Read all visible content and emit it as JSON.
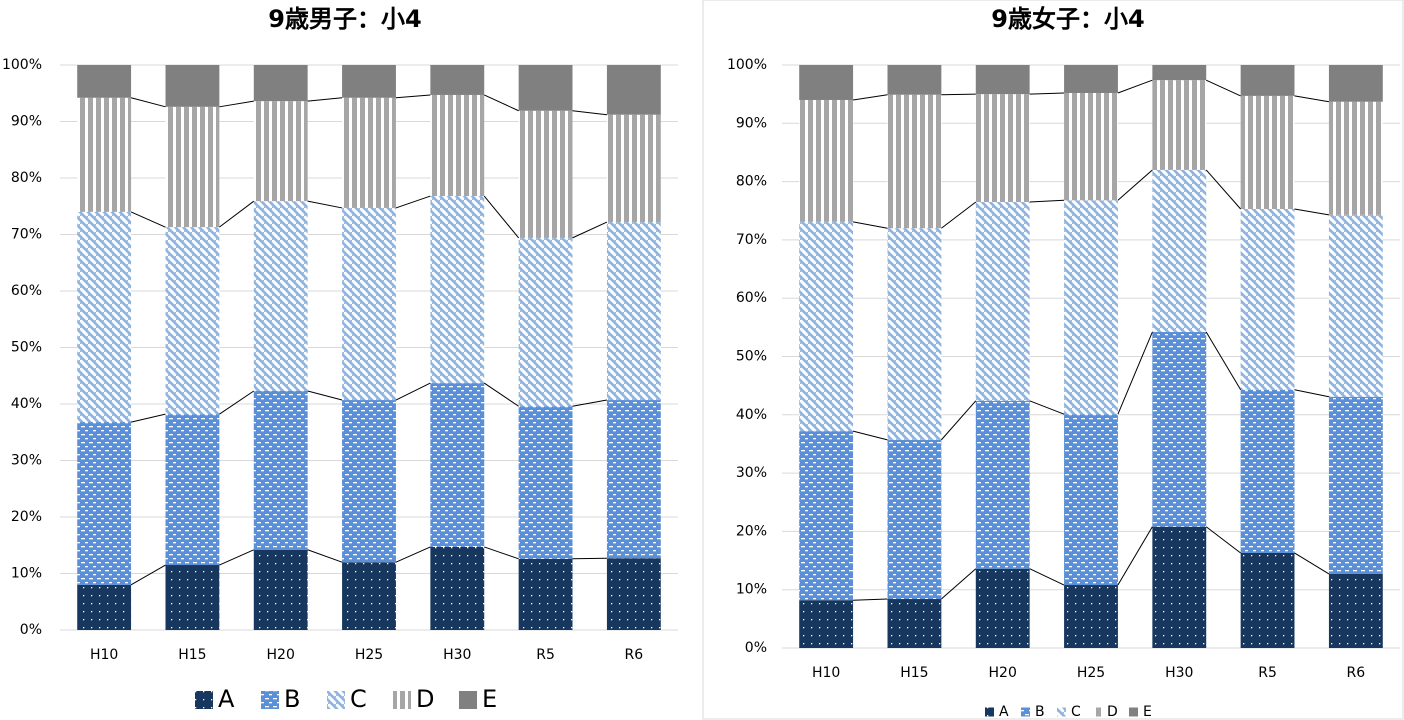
{
  "chart_data": [
    {
      "type": "bar",
      "stacked": true,
      "title": "9歳男子：小4",
      "categories": [
        "H10",
        "H15",
        "H20",
        "H25",
        "H30",
        "R5",
        "R6"
      ],
      "series": [
        {
          "name": "A",
          "color": "#17375e",
          "values": [
            8.0,
            11.5,
            14.2,
            12.0,
            14.7,
            12.6,
            12.7
          ]
        },
        {
          "name": "B",
          "color": "#5b8fd6",
          "values": [
            28.8,
            26.7,
            28.1,
            28.7,
            29.0,
            27.0,
            28.0
          ]
        },
        {
          "name": "C",
          "color": "#8db4e2",
          "values": [
            37.2,
            33.1,
            33.6,
            34.0,
            33.1,
            29.8,
            31.5
          ]
        },
        {
          "name": "D",
          "color": "#a6a6a6",
          "values": [
            20.2,
            21.3,
            17.7,
            19.5,
            17.9,
            22.5,
            19.0
          ]
        },
        {
          "name": "E",
          "color": "#808080",
          "values": [
            5.8,
            7.4,
            6.4,
            5.8,
            5.3,
            8.1,
            8.8
          ]
        }
      ],
      "ylim": [
        0,
        100
      ],
      "yticks": [
        {
          "value": 0,
          "label": "0%"
        },
        {
          "value": 10,
          "label": "10%"
        },
        {
          "value": 20,
          "label": "20%"
        },
        {
          "value": 30,
          "label": "30%"
        },
        {
          "value": 40,
          "label": "40%"
        },
        {
          "value": 50,
          "label": "50%"
        },
        {
          "value": 60,
          "label": "60%"
        },
        {
          "value": 70,
          "label": "70%"
        },
        {
          "value": 80,
          "label": "80%"
        },
        {
          "value": 90,
          "label": "90%"
        },
        {
          "value": 100,
          "label": "100%"
        }
      ],
      "grid": true,
      "legend": "bottom"
    },
    {
      "type": "bar",
      "stacked": true,
      "title": "9歳女子：小4",
      "categories": [
        "H10",
        "H15",
        "H20",
        "H25",
        "H30",
        "R5",
        "R6"
      ],
      "series": [
        {
          "name": "A",
          "color": "#17375e",
          "values": [
            8.2,
            8.4,
            13.6,
            10.8,
            20.8,
            16.3,
            12.7
          ]
        },
        {
          "name": "B",
          "color": "#5b8fd6",
          "values": [
            29.0,
            27.3,
            28.8,
            29.3,
            33.4,
            28.0,
            30.4
          ]
        },
        {
          "name": "C",
          "color": "#8db4e2",
          "values": [
            35.9,
            36.3,
            34.1,
            36.7,
            27.8,
            31.0,
            31.2
          ]
        },
        {
          "name": "D",
          "color": "#a6a6a6",
          "values": [
            20.9,
            22.9,
            18.5,
            18.4,
            15.4,
            19.4,
            19.4
          ]
        },
        {
          "name": "E",
          "color": "#808080",
          "values": [
            6.0,
            5.1,
            5.0,
            4.8,
            2.6,
            5.3,
            6.3
          ]
        }
      ],
      "ylim": [
        0,
        100
      ],
      "yticks": [
        {
          "value": 0,
          "label": "0%"
        },
        {
          "value": 10,
          "label": "10%"
        },
        {
          "value": 20,
          "label": "20%"
        },
        {
          "value": 30,
          "label": "30%"
        },
        {
          "value": 40,
          "label": "40%"
        },
        {
          "value": 50,
          "label": "50%"
        },
        {
          "value": 60,
          "label": "60%"
        },
        {
          "value": 70,
          "label": "70%"
        },
        {
          "value": 80,
          "label": "80%"
        },
        {
          "value": 90,
          "label": "90%"
        },
        {
          "value": 100,
          "label": "100%"
        }
      ],
      "grid": true,
      "legend": "bottom"
    }
  ]
}
